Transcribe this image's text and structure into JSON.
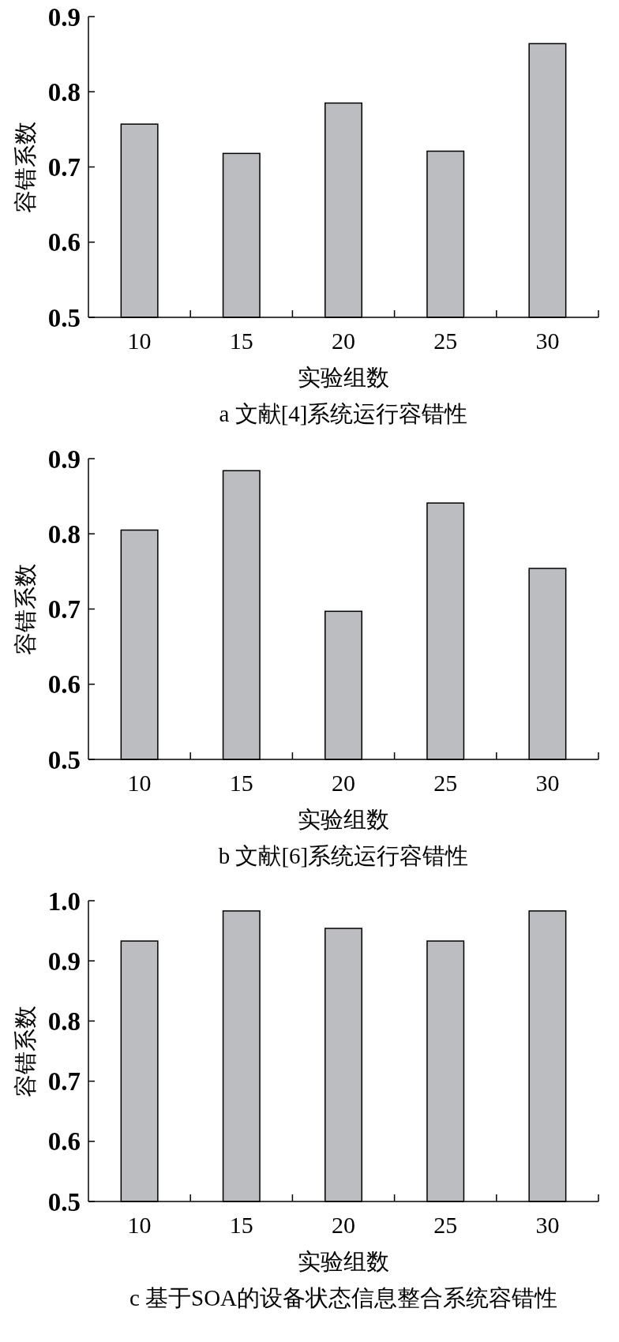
{
  "chart_data": [
    {
      "type": "bar",
      "title": "a 文献[4]系统运行容错性",
      "xlabel": "实验组数",
      "ylabel": "容错系数",
      "categories": [
        "10",
        "15",
        "20",
        "25",
        "30"
      ],
      "values": [
        0.757,
        0.718,
        0.785,
        0.721,
        0.864
      ],
      "color": "#bcbdc1",
      "ylim": [
        0.5,
        0.9
      ],
      "yticks": [
        {
          "value": 0.5,
          "label": "0.5"
        },
        {
          "value": 0.6,
          "label": "0.6"
        },
        {
          "value": 0.7,
          "label": "0.7"
        },
        {
          "value": 0.8,
          "label": "0.8"
        },
        {
          "value": 0.9,
          "label": "0.9"
        }
      ]
    },
    {
      "type": "bar",
      "title": "b 文献[6]系统运行容错性",
      "xlabel": "实验组数",
      "ylabel": "容错系数",
      "categories": [
        "10",
        "15",
        "20",
        "25",
        "30"
      ],
      "values": [
        0.805,
        0.884,
        0.697,
        0.841,
        0.754
      ],
      "color": "#bcbdc1",
      "ylim": [
        0.5,
        0.9
      ],
      "yticks": [
        {
          "value": 0.5,
          "label": "0.5"
        },
        {
          "value": 0.6,
          "label": "0.6"
        },
        {
          "value": 0.7,
          "label": "0.7"
        },
        {
          "value": 0.8,
          "label": "0.8"
        },
        {
          "value": 0.9,
          "label": "0.9"
        }
      ]
    },
    {
      "type": "bar",
      "title": "c 基于SOA的设备状态信息整合系统容错性",
      "xlabel": "实验组数",
      "ylabel": "容错系数",
      "categories": [
        "10",
        "15",
        "20",
        "25",
        "30"
      ],
      "values": [
        0.933,
        0.983,
        0.954,
        0.933,
        0.983
      ],
      "color": "#bcbdc1",
      "ylim": [
        0.5,
        1.0
      ],
      "yticks": [
        {
          "value": 0.5,
          "label": "0.5"
        },
        {
          "value": 0.6,
          "label": "0.6"
        },
        {
          "value": 0.7,
          "label": "0.7"
        },
        {
          "value": 0.8,
          "label": "0.8"
        },
        {
          "value": 0.9,
          "label": "0.9"
        },
        {
          "value": 1.0,
          "label": "1.0"
        }
      ]
    }
  ]
}
